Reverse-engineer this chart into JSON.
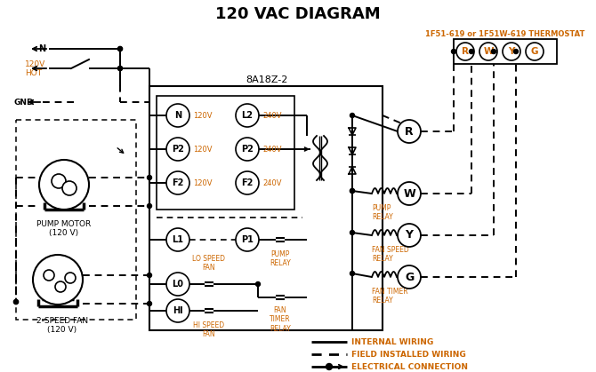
{
  "title": "120 VAC DIAGRAM",
  "bg_color": "#ffffff",
  "line_color": "#000000",
  "orange_color": "#cc6600",
  "thermostat_label": "1F51-619 or 1F51W-619 THERMOSTAT",
  "controller_label": "8A18Z-2",
  "legend_items": [
    {
      "label": "INTERNAL WIRING"
    },
    {
      "label": "FIELD INSTALLED WIRING"
    },
    {
      "label": "ELECTRICAL CONNECTION"
    }
  ]
}
